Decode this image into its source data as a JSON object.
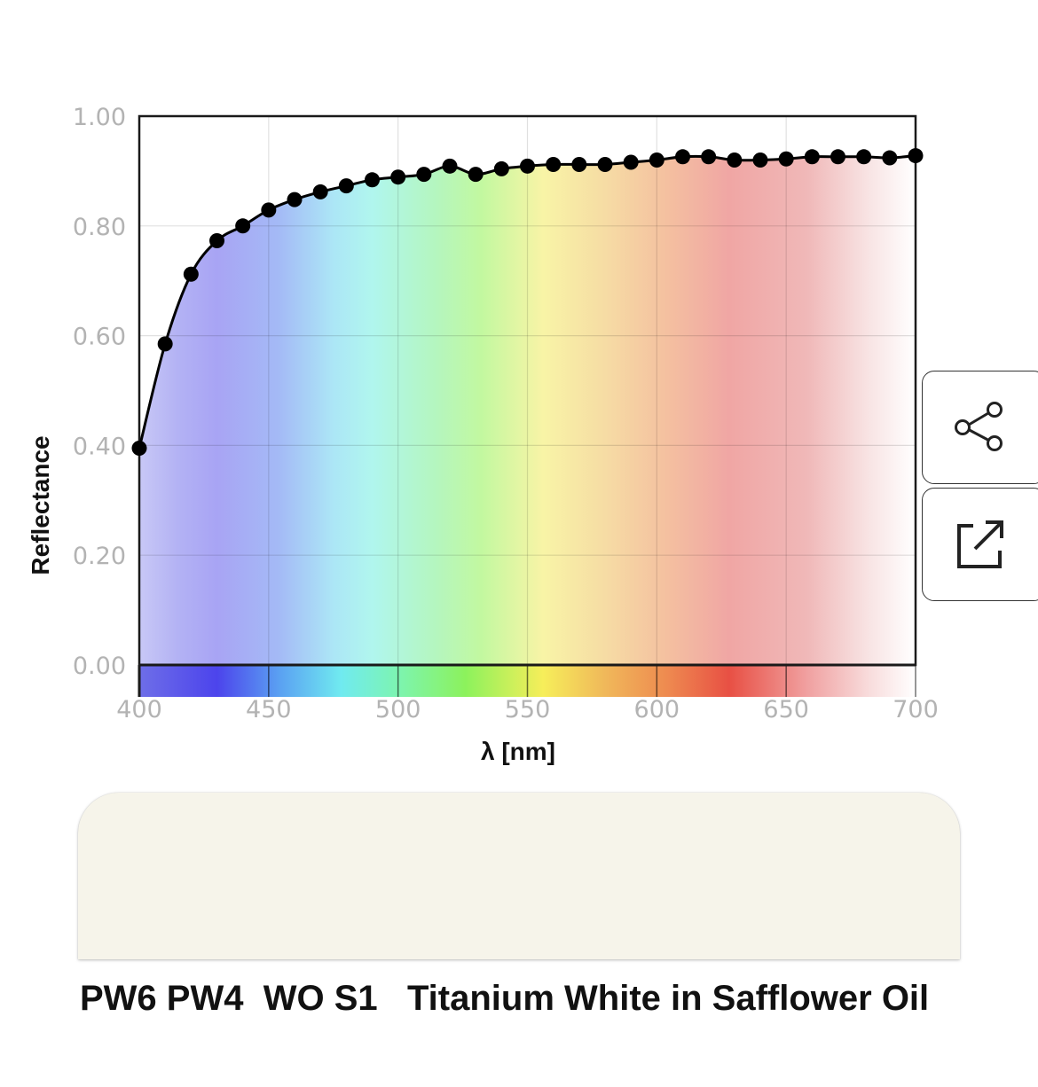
{
  "chart_data": {
    "type": "line",
    "xlabel": "λ [nm]",
    "ylabel": "Reflectance",
    "xlim": [
      400,
      700
    ],
    "ylim": [
      0,
      1
    ],
    "x_ticks": [
      "400",
      "450",
      "500",
      "550",
      "600",
      "650",
      "700"
    ],
    "y_ticks": [
      "0.00",
      "0.20",
      "0.40",
      "0.60",
      "0.80",
      "1.00"
    ],
    "grid": true,
    "background": "visible spectrum gradient",
    "marker_color": "#000000",
    "line_color": "#000000",
    "series": [
      {
        "x": [
          400,
          410,
          420,
          430,
          440,
          450,
          460,
          470,
          480,
          490,
          500,
          510,
          520,
          530,
          540,
          550,
          560,
          570,
          580,
          590,
          600,
          610,
          620,
          630,
          640,
          650,
          660,
          670,
          680,
          690,
          700
        ],
        "y": [
          0.395,
          0.585,
          0.712,
          0.773,
          0.8,
          0.829,
          0.848,
          0.862,
          0.873,
          0.884,
          0.889,
          0.894,
          0.909,
          0.894,
          0.904,
          0.909,
          0.912,
          0.912,
          0.912,
          0.916,
          0.92,
          0.926,
          0.926,
          0.92,
          0.92,
          0.922,
          0.926,
          0.926,
          0.926,
          0.924,
          0.928
        ]
      }
    ]
  },
  "swatch_color": "#f6f4ea",
  "paint": {
    "pigments": "PW6 PW4",
    "codes": "WO S1",
    "name": "Titanium White in Safflower Oil"
  },
  "icons": {
    "share": "share-icon",
    "open": "open-external-icon"
  }
}
